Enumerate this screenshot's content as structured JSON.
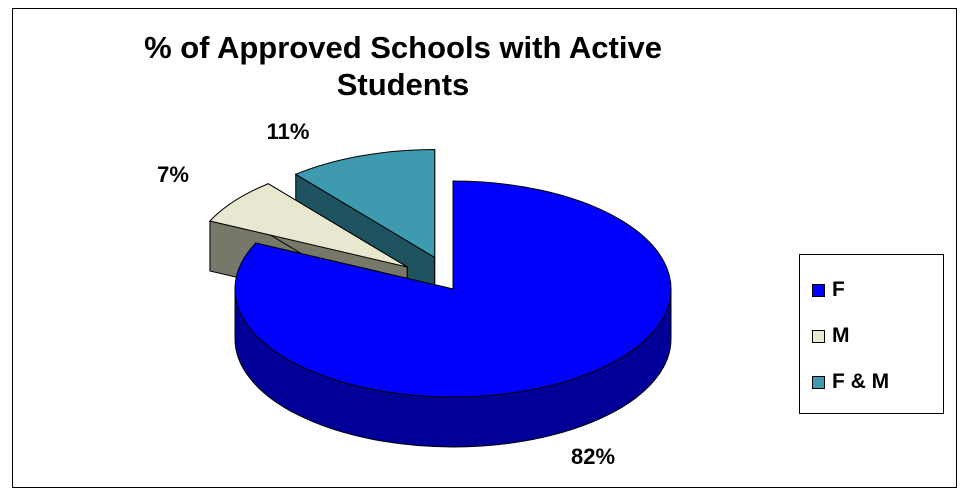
{
  "chart_data": {
    "type": "pie",
    "title": "% of Approved Schools with Active Students",
    "style": "3d-exploded",
    "categories": [
      "F",
      "M",
      "F & M"
    ],
    "values": [
      82,
      7,
      11
    ],
    "data_labels": [
      "82%",
      "7%",
      "11%"
    ],
    "colors": [
      "#0000FF",
      "#E8E8D0",
      "#3E9BAF"
    ],
    "side_colors": [
      "#000099",
      "#77776A",
      "#1F5360"
    ],
    "legend_position": "right"
  }
}
